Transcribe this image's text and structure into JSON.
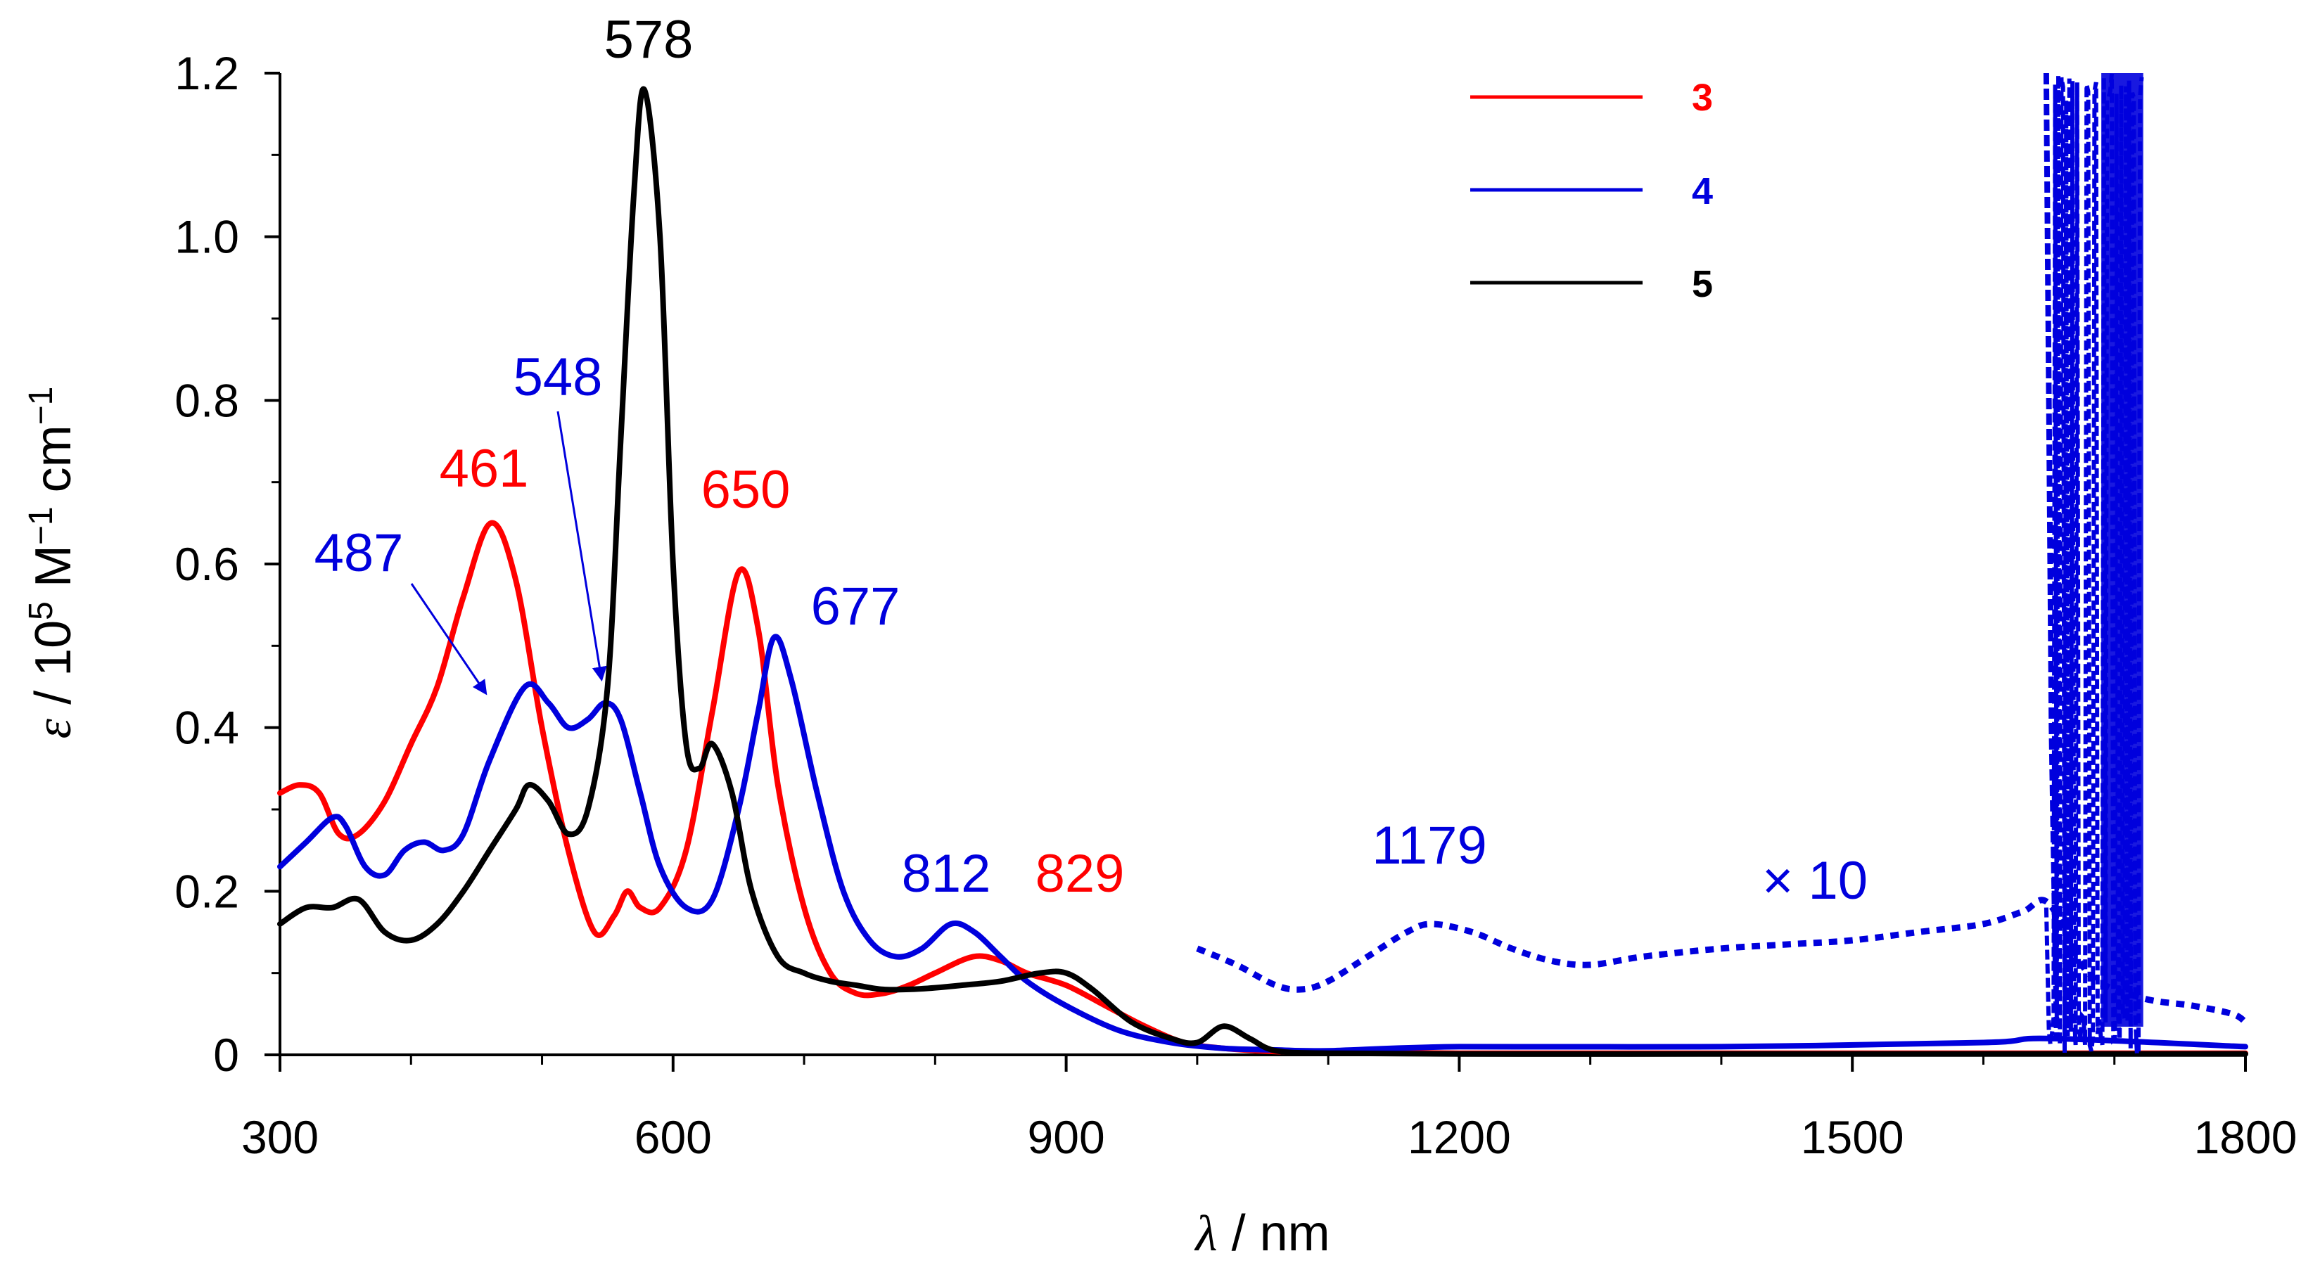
{
  "chart_data": {
    "type": "line",
    "title": "",
    "xlabel_symbol": "λ",
    "xlabel_unit": " / nm",
    "ylabel_symbol": "ε",
    "ylabel_unit": " / 10",
    "ylabel_exp": "5",
    "ylabel_unit2": " M",
    "ylabel_exp2": "−1",
    "ylabel_unit3": " cm",
    "ylabel_exp3": "−1",
    "xlim": [
      300,
      1800
    ],
    "ylim": [
      0,
      1.2
    ],
    "xticks": [
      300,
      600,
      900,
      1200,
      1500,
      1800
    ],
    "xtick_labels": [
      "300",
      "600",
      "900",
      "1200",
      "1500",
      "1800"
    ],
    "yticks": [
      0,
      0.2,
      0.4,
      0.6,
      0.8,
      1.0,
      1.2
    ],
    "ytick_labels": [
      "0",
      "0.2",
      "0.4",
      "0.6",
      "0.8",
      "1.0",
      "1.2"
    ],
    "legend": {
      "position": "top-right",
      "entries": [
        "3",
        "4",
        "5"
      ]
    },
    "series": [
      {
        "name": "3",
        "color": "#ff0000",
        "x": [
          300,
          315,
          330,
          345,
          360,
          380,
          400,
          420,
          440,
          461,
          480,
          500,
          520,
          540,
          555,
          565,
          575,
          590,
          610,
          630,
          650,
          665,
          680,
          700,
          720,
          740,
          760,
          780,
          800,
          829,
          850,
          870,
          900,
          930,
          960,
          990,
          1020,
          1060,
          1100,
          1200,
          1400,
          1600,
          1800
        ],
        "y": [
          0.32,
          0.33,
          0.32,
          0.27,
          0.27,
          0.31,
          0.38,
          0.45,
          0.56,
          0.65,
          0.58,
          0.4,
          0.25,
          0.15,
          0.17,
          0.2,
          0.18,
          0.18,
          0.25,
          0.42,
          0.59,
          0.52,
          0.33,
          0.18,
          0.1,
          0.075,
          0.075,
          0.085,
          0.1,
          0.12,
          0.115,
          0.1,
          0.085,
          0.06,
          0.035,
          0.015,
          0.008,
          0.004,
          0.003,
          0.002,
          0.002,
          0.002,
          0.002
        ]
      },
      {
        "name": "4",
        "color": "#0000dd",
        "x": [
          300,
          320,
          340,
          350,
          365,
          380,
          395,
          410,
          425,
          440,
          460,
          487,
          505,
          520,
          535,
          548,
          560,
          575,
          590,
          610,
          630,
          650,
          665,
          677,
          690,
          710,
          730,
          750,
          770,
          790,
          812,
          830,
          850,
          870,
          900,
          940,
          980,
          1020,
          1060,
          1100,
          1200,
          1400,
          1600,
          1650,
          1800
        ],
        "y": [
          0.23,
          0.26,
          0.29,
          0.28,
          0.23,
          0.22,
          0.25,
          0.26,
          0.25,
          0.27,
          0.36,
          0.45,
          0.43,
          0.4,
          0.41,
          0.43,
          0.41,
          0.32,
          0.23,
          0.18,
          0.19,
          0.3,
          0.42,
          0.51,
          0.46,
          0.32,
          0.2,
          0.14,
          0.12,
          0.13,
          0.16,
          0.15,
          0.12,
          0.09,
          0.06,
          0.03,
          0.015,
          0.008,
          0.006,
          0.005,
          0.01,
          0.01,
          0.015,
          0.02,
          0.01
        ]
      },
      {
        "name": "5",
        "color": "#000000",
        "x": [
          300,
          320,
          340,
          360,
          380,
          400,
          420,
          440,
          460,
          480,
          490,
          505,
          520,
          535,
          550,
          560,
          570,
          578,
          590,
          600,
          610,
          620,
          630,
          645,
          660,
          680,
          700,
          720,
          740,
          760,
          780,
          800,
          820,
          850,
          880,
          900,
          920,
          950,
          980,
          1000,
          1020,
          1040,
          1060,
          1100,
          1200,
          1400,
          1600,
          1800
        ],
        "y": [
          0.16,
          0.18,
          0.18,
          0.19,
          0.15,
          0.14,
          0.16,
          0.2,
          0.25,
          0.3,
          0.33,
          0.31,
          0.27,
          0.3,
          0.45,
          0.75,
          1.05,
          1.18,
          1.0,
          0.6,
          0.38,
          0.35,
          0.38,
          0.32,
          0.2,
          0.12,
          0.1,
          0.09,
          0.085,
          0.08,
          0.08,
          0.082,
          0.085,
          0.09,
          0.1,
          0.1,
          0.08,
          0.04,
          0.02,
          0.015,
          0.035,
          0.02,
          0.005,
          0.002,
          0.001,
          0.001,
          0.001,
          0.001
        ]
      },
      {
        "name": "4 (× 10)",
        "color": "#0000dd",
        "dashed": true,
        "x": [
          1000,
          1030,
          1060,
          1080,
          1100,
          1130,
          1160,
          1179,
          1210,
          1240,
          1270,
          1300,
          1340,
          1400,
          1450,
          1500,
          1550,
          1600,
          1630,
          1650,
          1680,
          1720,
          1760,
          1790,
          1800
        ],
        "y": [
          0.13,
          0.11,
          0.085,
          0.08,
          0.09,
          0.12,
          0.15,
          0.16,
          0.15,
          0.13,
          0.115,
          0.11,
          0.12,
          0.13,
          0.135,
          0.14,
          0.15,
          0.16,
          0.175,
          0.185,
          0.1,
          0.07,
          0.06,
          0.05,
          0.04
        ]
      }
    ],
    "annotations": [
      {
        "text": "578",
        "x": 578,
        "y": 1.18,
        "color": "#000000"
      },
      {
        "text": "461",
        "x": 461,
        "y": 0.65,
        "color": "#ff0000"
      },
      {
        "text": "650",
        "x": 650,
        "y": 0.59,
        "color": "#ff0000"
      },
      {
        "text": "548",
        "x": 548,
        "y": 0.43,
        "color": "#0000dd"
      },
      {
        "text": "487",
        "x": 487,
        "y": 0.45,
        "color": "#0000dd"
      },
      {
        "text": "677",
        "x": 677,
        "y": 0.51,
        "color": "#0000dd"
      },
      {
        "text": "812",
        "x": 812,
        "y": 0.16,
        "color": "#0000dd"
      },
      {
        "text": "829",
        "x": 829,
        "y": 0.12,
        "color": "#ff0000"
      },
      {
        "text": "1179",
        "x": 1179,
        "y": 0.16,
        "color": "#0000dd"
      },
      {
        "text": "× 10",
        "x": 1400,
        "y": 0.2,
        "color": "#0000dd"
      }
    ]
  }
}
